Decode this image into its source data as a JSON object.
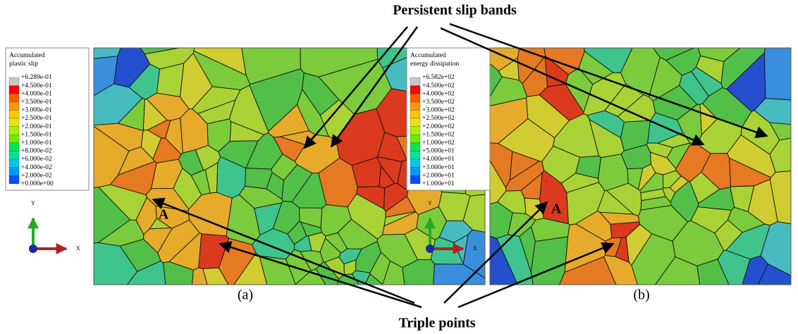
{
  "annotations": {
    "top": "Persistent slip bands",
    "bottom": "Triple points"
  },
  "panels": [
    {
      "label": "(a)",
      "point": "A",
      "axes": {
        "y": "Y",
        "x": "X"
      },
      "legend": {
        "title": [
          "Accumulated",
          "plastic slip"
        ],
        "values": [
          "+6.289e-01",
          "+4.500e-01",
          "+4.000e-01",
          "+3.500e-01",
          "+3.000e-01",
          "+2.500e-01",
          "+2.000e-01",
          "+1.500e-01",
          "+1.000e-01",
          "+8.000e-02",
          "+6.000e-02",
          "+4.000e-02",
          "+2.000e-02",
          "+0.000e+00"
        ]
      }
    },
    {
      "label": "(b)",
      "point": "A",
      "axes": {
        "y": "Y",
        "x": "X"
      },
      "legend": {
        "title": [
          "Accumulated",
          "energy dissipation"
        ],
        "values": [
          "+6.582e+02",
          "+4.500e+02",
          "+4.000e+02",
          "+3.500e+02",
          "+3.000e+02",
          "+2.500e+02",
          "+2.000e+02",
          "+1.500e+02",
          "+1.000e+02",
          "+5.000e+01",
          "+4.000e+01",
          "+3.000e+01",
          "+2.000e+01",
          "+1.000e+01"
        ]
      }
    }
  ]
}
